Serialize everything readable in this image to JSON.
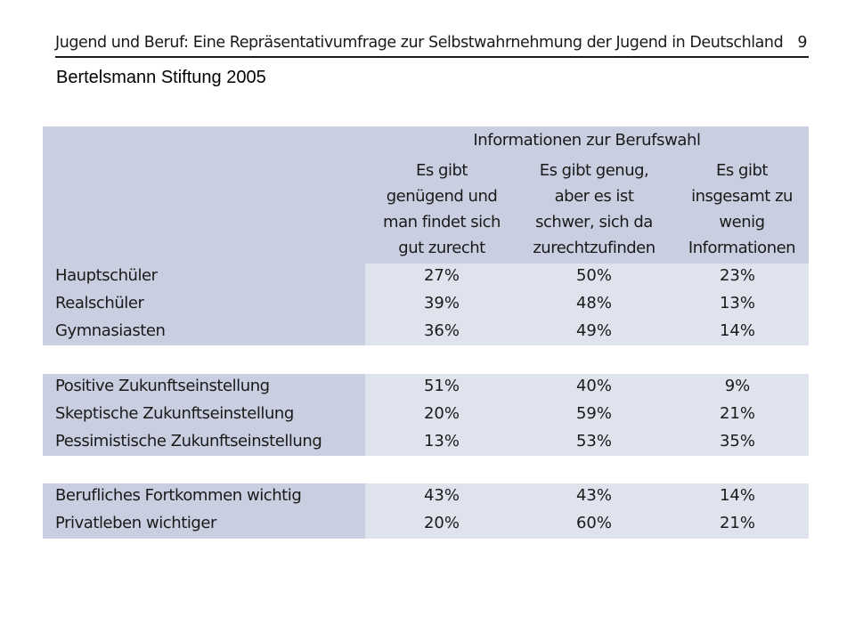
{
  "page_header": {
    "title": "Jugend und Beruf: Eine Repräsentativumfrage zur Selbstwahrnehmung der Jugend in Deutschland",
    "page_number": "9"
  },
  "source": "Bertelsmann Stiftung 2005",
  "table": {
    "group_title": "Informationen zur Berufswahl",
    "columns": [
      "Es gibt\ngenügend und\nman findet sich\ngut zurecht",
      "Es gibt genug,\naber es ist\nschwer, sich da\nzurechtzufinden",
      "Es gibt\ninsgesamt zu\nwenig\nInformationen"
    ],
    "groups": [
      {
        "rows": [
          {
            "label": "Hauptschüler",
            "values": [
              "27%",
              "50%",
              "23%"
            ]
          },
          {
            "label": "Realschüler",
            "values": [
              "39%",
              "48%",
              "13%"
            ]
          },
          {
            "label": "Gymnasiasten",
            "values": [
              "36%",
              "49%",
              "14%"
            ]
          }
        ]
      },
      {
        "rows": [
          {
            "label": "Positive Zukunftseinstellung",
            "values": [
              "51%",
              "40%",
              "9%"
            ]
          },
          {
            "label": "Skeptische Zukunftseinstellung",
            "values": [
              "20%",
              "59%",
              "21%"
            ]
          },
          {
            "label": "Pessimistische Zukunftseinstellung",
            "values": [
              "13%",
              "53%",
              "35%"
            ]
          }
        ]
      },
      {
        "rows": [
          {
            "label": "Berufliches Fortkommen wichtig",
            "values": [
              "43%",
              "43%",
              "14%"
            ]
          },
          {
            "label": "Privatleben wichtiger",
            "values": [
              "20%",
              "60%",
              "21%"
            ]
          }
        ]
      }
    ]
  },
  "colors": {
    "header_band": "#c9cfe0",
    "value_cells": "#dfe3ee",
    "text": "#1a1a1a"
  }
}
